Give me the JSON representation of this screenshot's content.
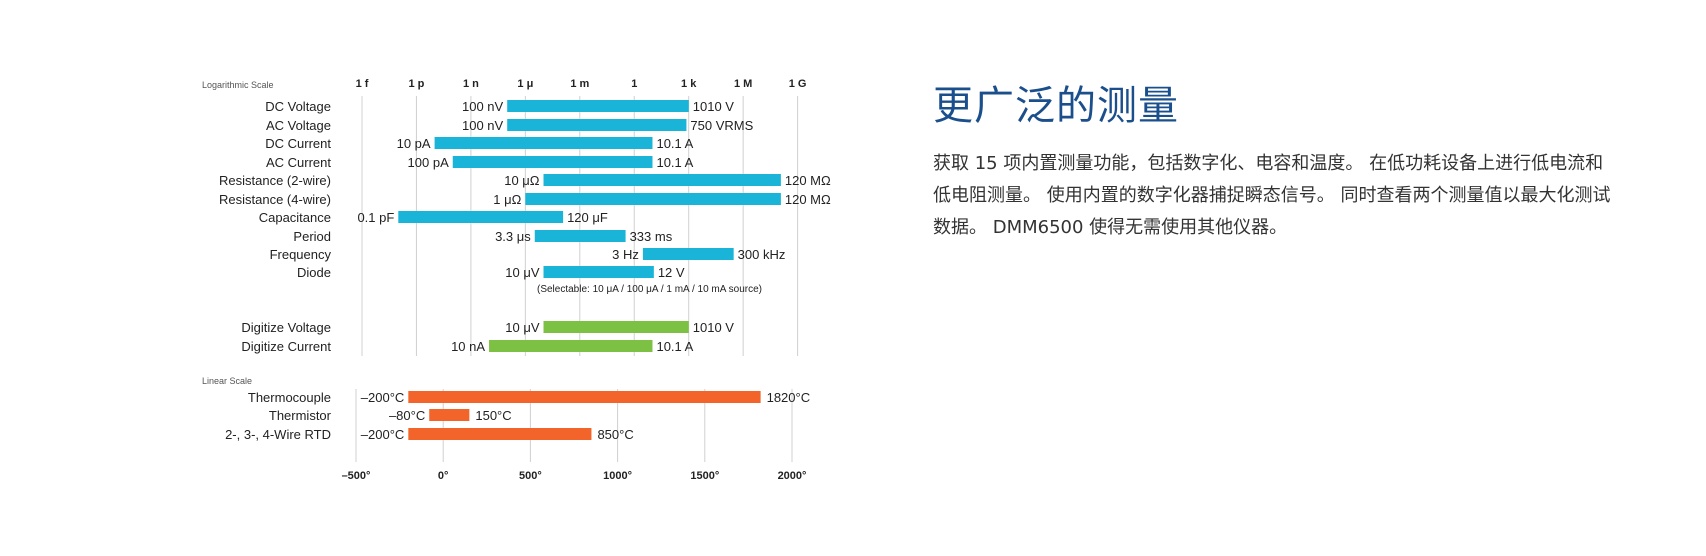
{
  "info": {
    "title": "更广泛的测量",
    "description": "获取 15 项内置测量功能，包括数字化、电容和温度。 在低功耗设备上进行低电流和低电阻测量。 使用内置的数字化器捕捉瞬态信号。 同时查看两个测量值以最大化测试数据。 DMM6500 使得无需使用其他仪器。"
  },
  "chart_data": [
    {
      "type": "bar",
      "orientation": "horizontal-range",
      "scale": "log",
      "scale_label": "Logarithmic Scale",
      "xaxis_ticks": [
        "1 f",
        "1 p",
        "1 n",
        "1 μ",
        "1 m",
        "1",
        "1 k",
        "1 M",
        "1 G"
      ],
      "xaxis_exponents": [
        -15,
        -12,
        -9,
        -6,
        -3,
        0,
        3,
        6,
        9
      ],
      "colors": {
        "measure": "#1ab4d9",
        "digitize": "#7cc143",
        "temperature": "#f26429",
        "grid": "#d0d0d0"
      },
      "rows": [
        {
          "label": "DC Voltage",
          "min": 1e-07,
          "max": 1010,
          "min_label": "100 nV",
          "max_label": "1010 V",
          "group": "measure"
        },
        {
          "label": "AC Voltage",
          "min": 1e-07,
          "max": 750,
          "min_label": "100 nV",
          "max_label": "750 VRMS",
          "group": "measure"
        },
        {
          "label": "DC Current",
          "min": 1e-11,
          "max": 10.1,
          "min_label": "10 pA",
          "max_label": "10.1 A",
          "group": "measure"
        },
        {
          "label": "AC Current",
          "min": 1e-10,
          "max": 10.1,
          "min_label": "100 pA",
          "max_label": "10.1 A",
          "group": "measure"
        },
        {
          "label": "Resistance (2-wire)",
          "min": 1e-05,
          "max": 120000000.0,
          "min_label": "10 μΩ",
          "max_label": "120 MΩ",
          "group": "measure"
        },
        {
          "label": "Resistance (4-wire)",
          "min": 1e-06,
          "max": 120000000.0,
          "min_label": "1 μΩ",
          "max_label": "120 MΩ",
          "group": "measure"
        },
        {
          "label": "Capacitance",
          "min": 1e-13,
          "max": 0.00012,
          "min_label": "0.1 pF",
          "max_label": "120 μF",
          "group": "measure"
        },
        {
          "label": "Period",
          "min": 3.3e-06,
          "max": 0.333,
          "min_label": "3.3 μs",
          "max_label": "333 ms",
          "group": "measure"
        },
        {
          "label": "Frequency",
          "min": 3,
          "max": 300000,
          "min_label": "3 Hz",
          "max_label": "300 kHz",
          "group": "measure"
        },
        {
          "label": "Diode",
          "min": 1e-05,
          "max": 12,
          "min_label": "10 μV",
          "max_label": "12 V",
          "group": "measure",
          "note": "(Selectable: 10 μA / 100 μA / 1 mA / 10 mA source)"
        },
        {
          "label": "Digitize Voltage",
          "min": 1e-05,
          "max": 1010,
          "min_label": "10 μV",
          "max_label": "1010 V",
          "group": "digitize"
        },
        {
          "label": "Digitize Current",
          "min": 1e-08,
          "max": 10.1,
          "min_label": "10 nA",
          "max_label": "10.1 A",
          "group": "digitize"
        }
      ]
    },
    {
      "type": "bar",
      "orientation": "horizontal-range",
      "scale": "linear",
      "scale_label": "Linear Scale",
      "xaxis_ticks": [
        "–500°",
        "0°",
        "500°",
        "1000°",
        "1500°",
        "2000°"
      ],
      "xaxis_values": [
        -500,
        0,
        500,
        1000,
        1500,
        2000
      ],
      "rows": [
        {
          "label": "Thermocouple",
          "min": -200,
          "max": 1820,
          "min_label": "–200°C",
          "max_label": "1820°C",
          "group": "temperature"
        },
        {
          "label": "Thermistor",
          "min": -80,
          "max": 150,
          "min_label": "–80°C",
          "max_label": "150°C",
          "group": "temperature"
        },
        {
          "label": "2-, 3-, 4-Wire RTD",
          "min": -200,
          "max": 850,
          "min_label": "–200°C",
          "max_label": "850°C",
          "group": "temperature"
        }
      ]
    }
  ]
}
